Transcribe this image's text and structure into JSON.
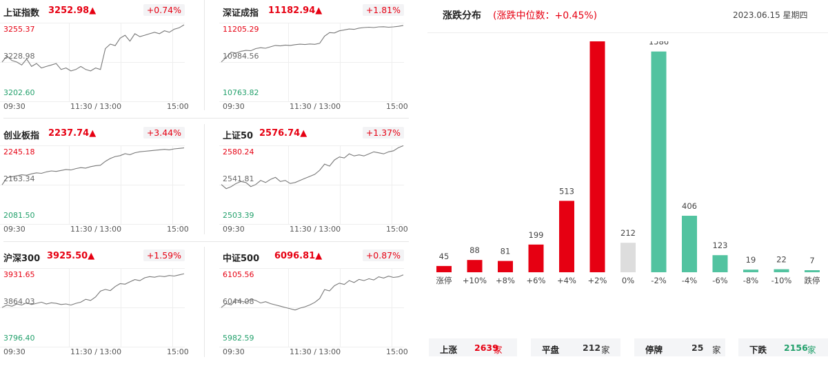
{
  "indices": [
    {
      "name": "上证指数",
      "value": "3252.98",
      "arrow": "▲",
      "pct": "+0.74%",
      "high": "3255.37",
      "mid": "3228.98",
      "low": "3202.60",
      "x_labels": [
        "09:30",
        "11:30 / 13:00",
        "15:00"
      ],
      "series": [
        3229,
        3233,
        3230,
        3229,
        3227,
        3231,
        3226,
        3228,
        3225,
        3226,
        3227,
        3228,
        3224,
        3225,
        3223,
        3224,
        3226,
        3224,
        3223,
        3225,
        3224,
        3238,
        3241,
        3240,
        3245,
        3247,
        3243,
        3248,
        3246,
        3247,
        3248,
        3249,
        3248,
        3250,
        3249,
        3251,
        3252,
        3254
      ]
    },
    {
      "name": "深证成指",
      "value": "11182.94",
      "arrow": "▲",
      "pct": "+1.81%",
      "high": "11205.29",
      "mid": "10984.56",
      "low": "10763.82",
      "x_labels": [
        "09:30",
        "11:30 / 13:00",
        "15:00"
      ],
      "series": [
        10985,
        11010,
        11040,
        11035,
        11045,
        11050,
        11048,
        11060,
        11065,
        11062,
        11070,
        11078,
        11075,
        11080,
        11078,
        11082,
        11085,
        11083,
        11086,
        11084,
        11090,
        11130,
        11150,
        11148,
        11160,
        11165,
        11170,
        11168,
        11175,
        11178,
        11180,
        11178,
        11182,
        11183,
        11180,
        11182,
        11185,
        11190
      ]
    },
    {
      "name": "创业板指",
      "value": "2237.74",
      "arrow": "▲",
      "pct": "+3.44%",
      "high": "2245.18",
      "mid": "2163.34",
      "low": "2081.50",
      "x_labels": [
        "09:30",
        "11:30 / 13:00",
        "15:00"
      ],
      "series": [
        2163,
        2178,
        2180,
        2182,
        2184,
        2183,
        2186,
        2188,
        2187,
        2190,
        2192,
        2191,
        2193,
        2195,
        2194,
        2197,
        2199,
        2198,
        2201,
        2203,
        2204,
        2212,
        2218,
        2222,
        2224,
        2228,
        2226,
        2230,
        2232,
        2233,
        2234,
        2235,
        2236,
        2237,
        2236,
        2238,
        2239,
        2240
      ]
    },
    {
      "name": "上证50",
      "value": "2576.74",
      "arrow": "▲",
      "pct": "+1.37%",
      "high": "2580.24",
      "mid": "2541.81",
      "low": "2503.39",
      "x_labels": [
        "09:30",
        "11:30 / 13:00",
        "15:00"
      ],
      "series": [
        2542,
        2538,
        2540,
        2543,
        2545,
        2544,
        2540,
        2542,
        2546,
        2544,
        2547,
        2549,
        2545,
        2546,
        2543,
        2544,
        2546,
        2548,
        2550,
        2552,
        2556,
        2562,
        2560,
        2566,
        2569,
        2568,
        2572,
        2570,
        2571,
        2570,
        2572,
        2574,
        2573,
        2572,
        2574,
        2575,
        2578,
        2580
      ]
    },
    {
      "name": "沪深300",
      "value": "3925.50",
      "arrow": "▲",
      "pct": "+1.59%",
      "high": "3931.65",
      "mid": "3864.03",
      "low": "3796.40",
      "x_labels": [
        "09:30",
        "11:30 / 13:00",
        "15:00"
      ],
      "series": [
        3864,
        3868,
        3866,
        3870,
        3868,
        3872,
        3869,
        3871,
        3873,
        3870,
        3872,
        3871,
        3869,
        3870,
        3868,
        3871,
        3873,
        3878,
        3876,
        3882,
        3892,
        3895,
        3893,
        3900,
        3905,
        3904,
        3908,
        3912,
        3910,
        3915,
        3917,
        3916,
        3918,
        3917,
        3919,
        3918,
        3920,
        3922
      ]
    },
    {
      "name": "中证500",
      "value": "6096.81",
      "arrow": "▲",
      "pct": "+0.87%",
      "high": "6105.56",
      "mid": "6044.08",
      "low": "5982.59",
      "x_labels": [
        "09:30",
        "11:30 / 13:00",
        "15:00"
      ],
      "series": [
        6044,
        6050,
        6048,
        6056,
        6054,
        6052,
        6057,
        6055,
        6051,
        6053,
        6050,
        6048,
        6046,
        6044,
        6042,
        6040,
        6043,
        6045,
        6048,
        6052,
        6058,
        6072,
        6070,
        6078,
        6082,
        6080,
        6086,
        6083,
        6088,
        6086,
        6089,
        6087,
        6092,
        6090,
        6093,
        6091,
        6092,
        6095
      ]
    }
  ],
  "distribution": {
    "title": "涨跌分布",
    "median": "(涨跌中位数：+0.45%)",
    "date": "2023.06.15 星期四",
    "colors": {
      "up": "#e60012",
      "flat": "#dddddd",
      "down": "#52c3a0"
    },
    "chart_data": {
      "type": "bar",
      "categories": [
        "涨停",
        "+10%",
        "+8%",
        "+6%",
        "+4%",
        "+2%",
        "0%",
        "-2%",
        "-4%",
        "-6%",
        "-8%",
        "-10%",
        "跌停"
      ],
      "values": [
        45,
        88,
        81,
        199,
        513,
        1758,
        212,
        1586,
        406,
        123,
        19,
        22,
        7
      ],
      "kinds": [
        "up",
        "up",
        "up",
        "up",
        "up",
        "up",
        "flat",
        "down",
        "down",
        "down",
        "down",
        "down",
        "down"
      ]
    },
    "summary": [
      {
        "label": "上涨",
        "value": "2639",
        "unit": "家",
        "color": "#e60012"
      },
      {
        "label": "平盘",
        "value": "212",
        "unit": "家",
        "color": "#333333"
      },
      {
        "label": "停牌",
        "value": "25",
        "unit": "家",
        "color": "#333333"
      },
      {
        "label": "下跌",
        "value": "2156",
        "unit": "家",
        "color": "#22a06b"
      }
    ]
  }
}
